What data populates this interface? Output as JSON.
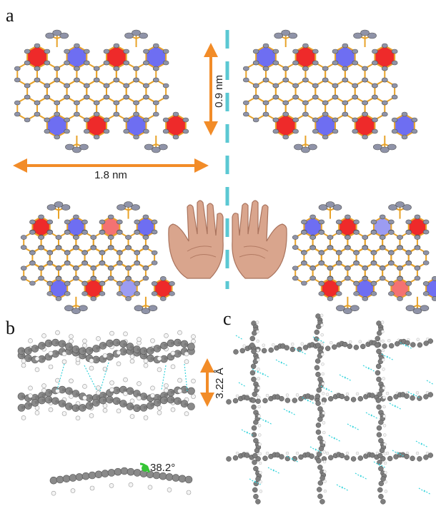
{
  "panels": {
    "a": {
      "label": "a"
    },
    "b": {
      "label": "b"
    },
    "c": {
      "label": "c"
    }
  },
  "annotations": {
    "height_dimension": "0.9 nm",
    "width_dimension": "1.8 nm",
    "stacking_distance": "3.22 Å",
    "twist_angle": "38.2°"
  },
  "colors": {
    "red_ring": "#ee2a2a",
    "blue_ring": "#6e6ef2",
    "dark_blue_ring": "#1b1bd9",
    "bond": "#e8a32a",
    "atom": "#8f93a8",
    "arrow": "#f28c28",
    "mirror_dash": "#5bc8d3",
    "interaction": "#39d4dc",
    "stick_gray": "#7a7a7a",
    "hydrogen": "#f4f4f4",
    "angle_marker": "#35c535"
  }
}
